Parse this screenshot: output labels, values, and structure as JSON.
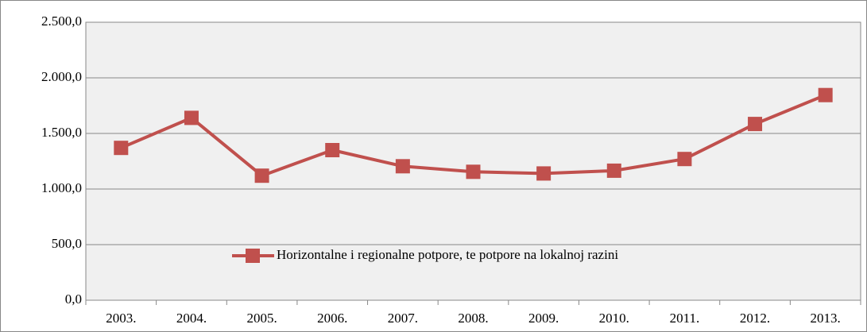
{
  "chart_data": {
    "type": "line",
    "categories": [
      "2003.",
      "2004.",
      "2005.",
      "2006.",
      "2007.",
      "2008.",
      "2009.",
      "2010.",
      "2011.",
      "2012.",
      "2013."
    ],
    "series": [
      {
        "name": "Horizontalne i regionalne potpore, te potpore na lokalnoj razini",
        "color": "#c0504d",
        "values": [
          1370,
          1640,
          1120,
          1350,
          1205,
          1155,
          1140,
          1165,
          1270,
          1585,
          1845
        ]
      }
    ],
    "ylim": [
      0,
      2500
    ],
    "yticks": [
      {
        "value": 0,
        "label": "0,0"
      },
      {
        "value": 500,
        "label": "500,0"
      },
      {
        "value": 1000,
        "label": "1.000,0"
      },
      {
        "value": 1500,
        "label": "1.500,0"
      },
      {
        "value": 2000,
        "label": "2.000,0"
      },
      {
        "value": 2500,
        "label": "2.500,0"
      }
    ],
    "grid": true
  }
}
